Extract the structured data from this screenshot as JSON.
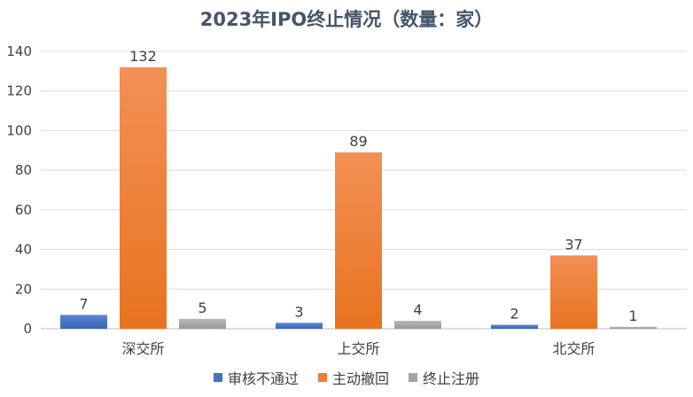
{
  "chart_data": {
    "type": "bar",
    "title": "2023年IPO终止情况（数量：家）",
    "categories": [
      "深交所",
      "上交所",
      "北交所"
    ],
    "series": [
      {
        "name": "审核不通过",
        "color": "#4472c4",
        "values": [
          7,
          3,
          2
        ]
      },
      {
        "name": "主动撤回",
        "color": "#ed7d31",
        "values": [
          132,
          89,
          37
        ]
      },
      {
        "name": "终止注册",
        "color": "#a5a5a5",
        "values": [
          5,
          4,
          1
        ]
      }
    ],
    "ylim": [
      0,
      140
    ],
    "yticks": [
      "0",
      "20",
      "40",
      "60",
      "80",
      "100",
      "120",
      "140"
    ],
    "grid": true,
    "legend_position": "bottom"
  }
}
